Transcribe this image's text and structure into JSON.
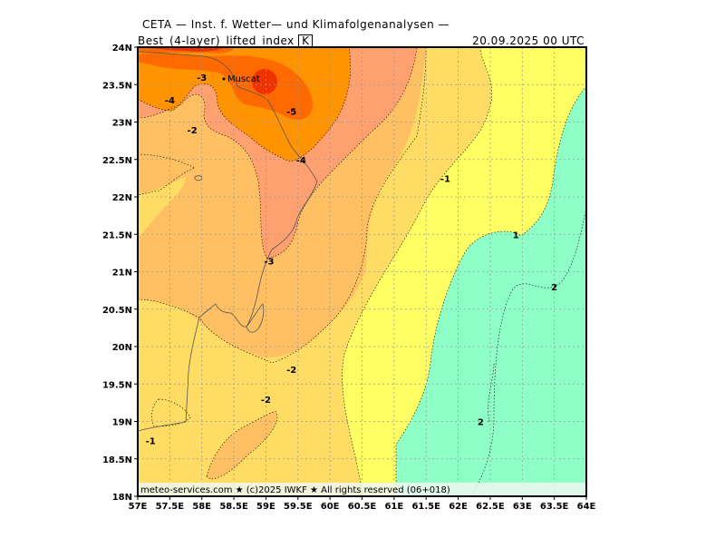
{
  "header": {
    "institution": "CETA — Inst. f. Wetter— und Klimafolgenanalysen —",
    "parameter_prefix": "Best_(4-layer)_lifted_index",
    "parameter_unit": "K",
    "valid_time": "20.09.2025  00 UTC"
  },
  "footer": {
    "credit": "meteo-services.com ★ (c)2025 IWKF ★ All rights reserved (06+018)"
  },
  "map": {
    "lon_range": [
      57,
      64
    ],
    "lat_range": [
      18,
      24
    ],
    "x_ticks": [
      "57E",
      "57.5E",
      "58E",
      "58.5E",
      "59E",
      "59.5E",
      "60E",
      "60.5E",
      "61E",
      "61.5E",
      "62E",
      "62.5E",
      "63E",
      "63.5E",
      "64E"
    ],
    "y_ticks": [
      "24N",
      "23.5N",
      "23N",
      "22.5N",
      "22N",
      "21.5N",
      "21N",
      "20.5N",
      "20N",
      "19.5N",
      "19N",
      "18.5N",
      "18N"
    ],
    "city": {
      "name": "Muscat",
      "lon": 58.4,
      "lat": 23.6
    },
    "contour_labels": [
      {
        "text": "-3",
        "lon": 58.0,
        "lat": 23.55
      },
      {
        "text": "-4",
        "lon": 57.5,
        "lat": 23.25
      },
      {
        "text": "-5",
        "lon": 59.4,
        "lat": 23.1
      },
      {
        "text": "-2",
        "lon": 57.85,
        "lat": 22.85
      },
      {
        "text": "-4",
        "lon": 59.55,
        "lat": 22.45
      },
      {
        "text": "-1",
        "lon": 61.8,
        "lat": 22.2
      },
      {
        "text": "1",
        "lon": 62.9,
        "lat": 21.45
      },
      {
        "text": "-3",
        "lon": 59.05,
        "lat": 21.1
      },
      {
        "text": "2",
        "lon": 63.5,
        "lat": 20.75
      },
      {
        "text": "-2",
        "lon": 59.4,
        "lat": 19.65
      },
      {
        "text": "-2",
        "lon": 59.0,
        "lat": 19.25
      },
      {
        "text": "2",
        "lon": 62.35,
        "lat": 18.95
      },
      {
        "text": "-1",
        "lon": 57.2,
        "lat": 18.7
      }
    ],
    "fill_colors": {
      "below_-5": "#ee3300",
      "-5_to_-4": "#ff6a00",
      "-4_to_-3": "#ff9300",
      "-3_to_-2": "#ffa070",
      "-2_to_-1": "#ffc063",
      "-1_to_0": "#ffdc64",
      "0_to_1": "#ffff64",
      "1_to_2": "#8fffc8"
    }
  }
}
